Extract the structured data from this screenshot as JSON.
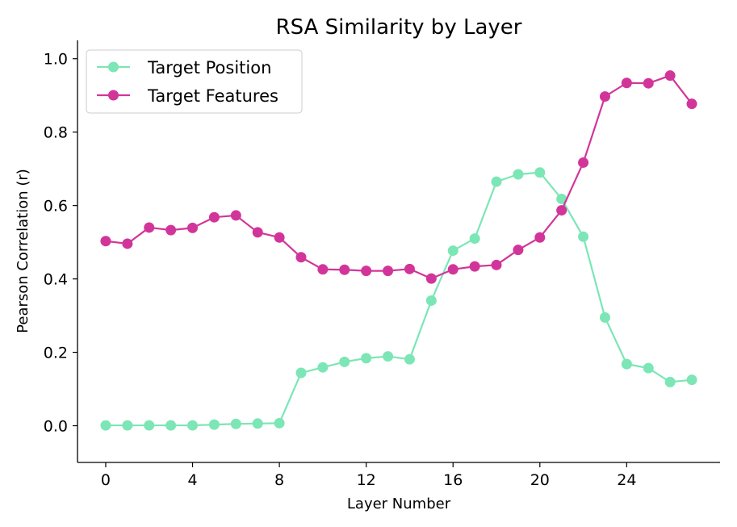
{
  "chart_data": {
    "type": "line",
    "title": "RSA Similarity by Layer",
    "xlabel": "Layer Number",
    "ylabel": "Pearson Correlation (r)",
    "xlim": [
      -1.3,
      28.3
    ],
    "ylim": [
      -0.1,
      1.05
    ],
    "xticks": [
      0,
      4,
      8,
      12,
      16,
      20,
      24
    ],
    "yticks": [
      0.0,
      0.2,
      0.4,
      0.6,
      0.8,
      1.0
    ],
    "ytick_labels": [
      "0.0",
      "0.2",
      "0.4",
      "0.6",
      "0.8",
      "1.0"
    ],
    "grid": false,
    "legend_position": "top-left",
    "x": [
      0,
      1,
      2,
      3,
      4,
      5,
      6,
      7,
      8,
      9,
      10,
      11,
      12,
      13,
      14,
      15,
      16,
      17,
      18,
      19,
      20,
      21,
      22,
      23,
      24,
      25,
      26,
      27
    ],
    "series": [
      {
        "name": "Target Position",
        "color": "#7ce6b6",
        "values": [
          0.001,
          0.001,
          0.001,
          0.001,
          0.001,
          0.003,
          0.005,
          0.006,
          0.007,
          0.144,
          0.159,
          0.174,
          0.184,
          0.189,
          0.181,
          0.341,
          0.477,
          0.51,
          0.665,
          0.685,
          0.69,
          0.618,
          0.515,
          0.295,
          0.168,
          0.157,
          0.119,
          0.125
        ]
      },
      {
        "name": "Target Features",
        "color": "#d2359a",
        "values": [
          0.503,
          0.496,
          0.54,
          0.533,
          0.539,
          0.568,
          0.573,
          0.527,
          0.513,
          0.459,
          0.426,
          0.425,
          0.422,
          0.422,
          0.427,
          0.401,
          0.426,
          0.434,
          0.438,
          0.479,
          0.513,
          0.587,
          0.717,
          0.897,
          0.934,
          0.933,
          0.954,
          0.877
        ]
      }
    ]
  }
}
